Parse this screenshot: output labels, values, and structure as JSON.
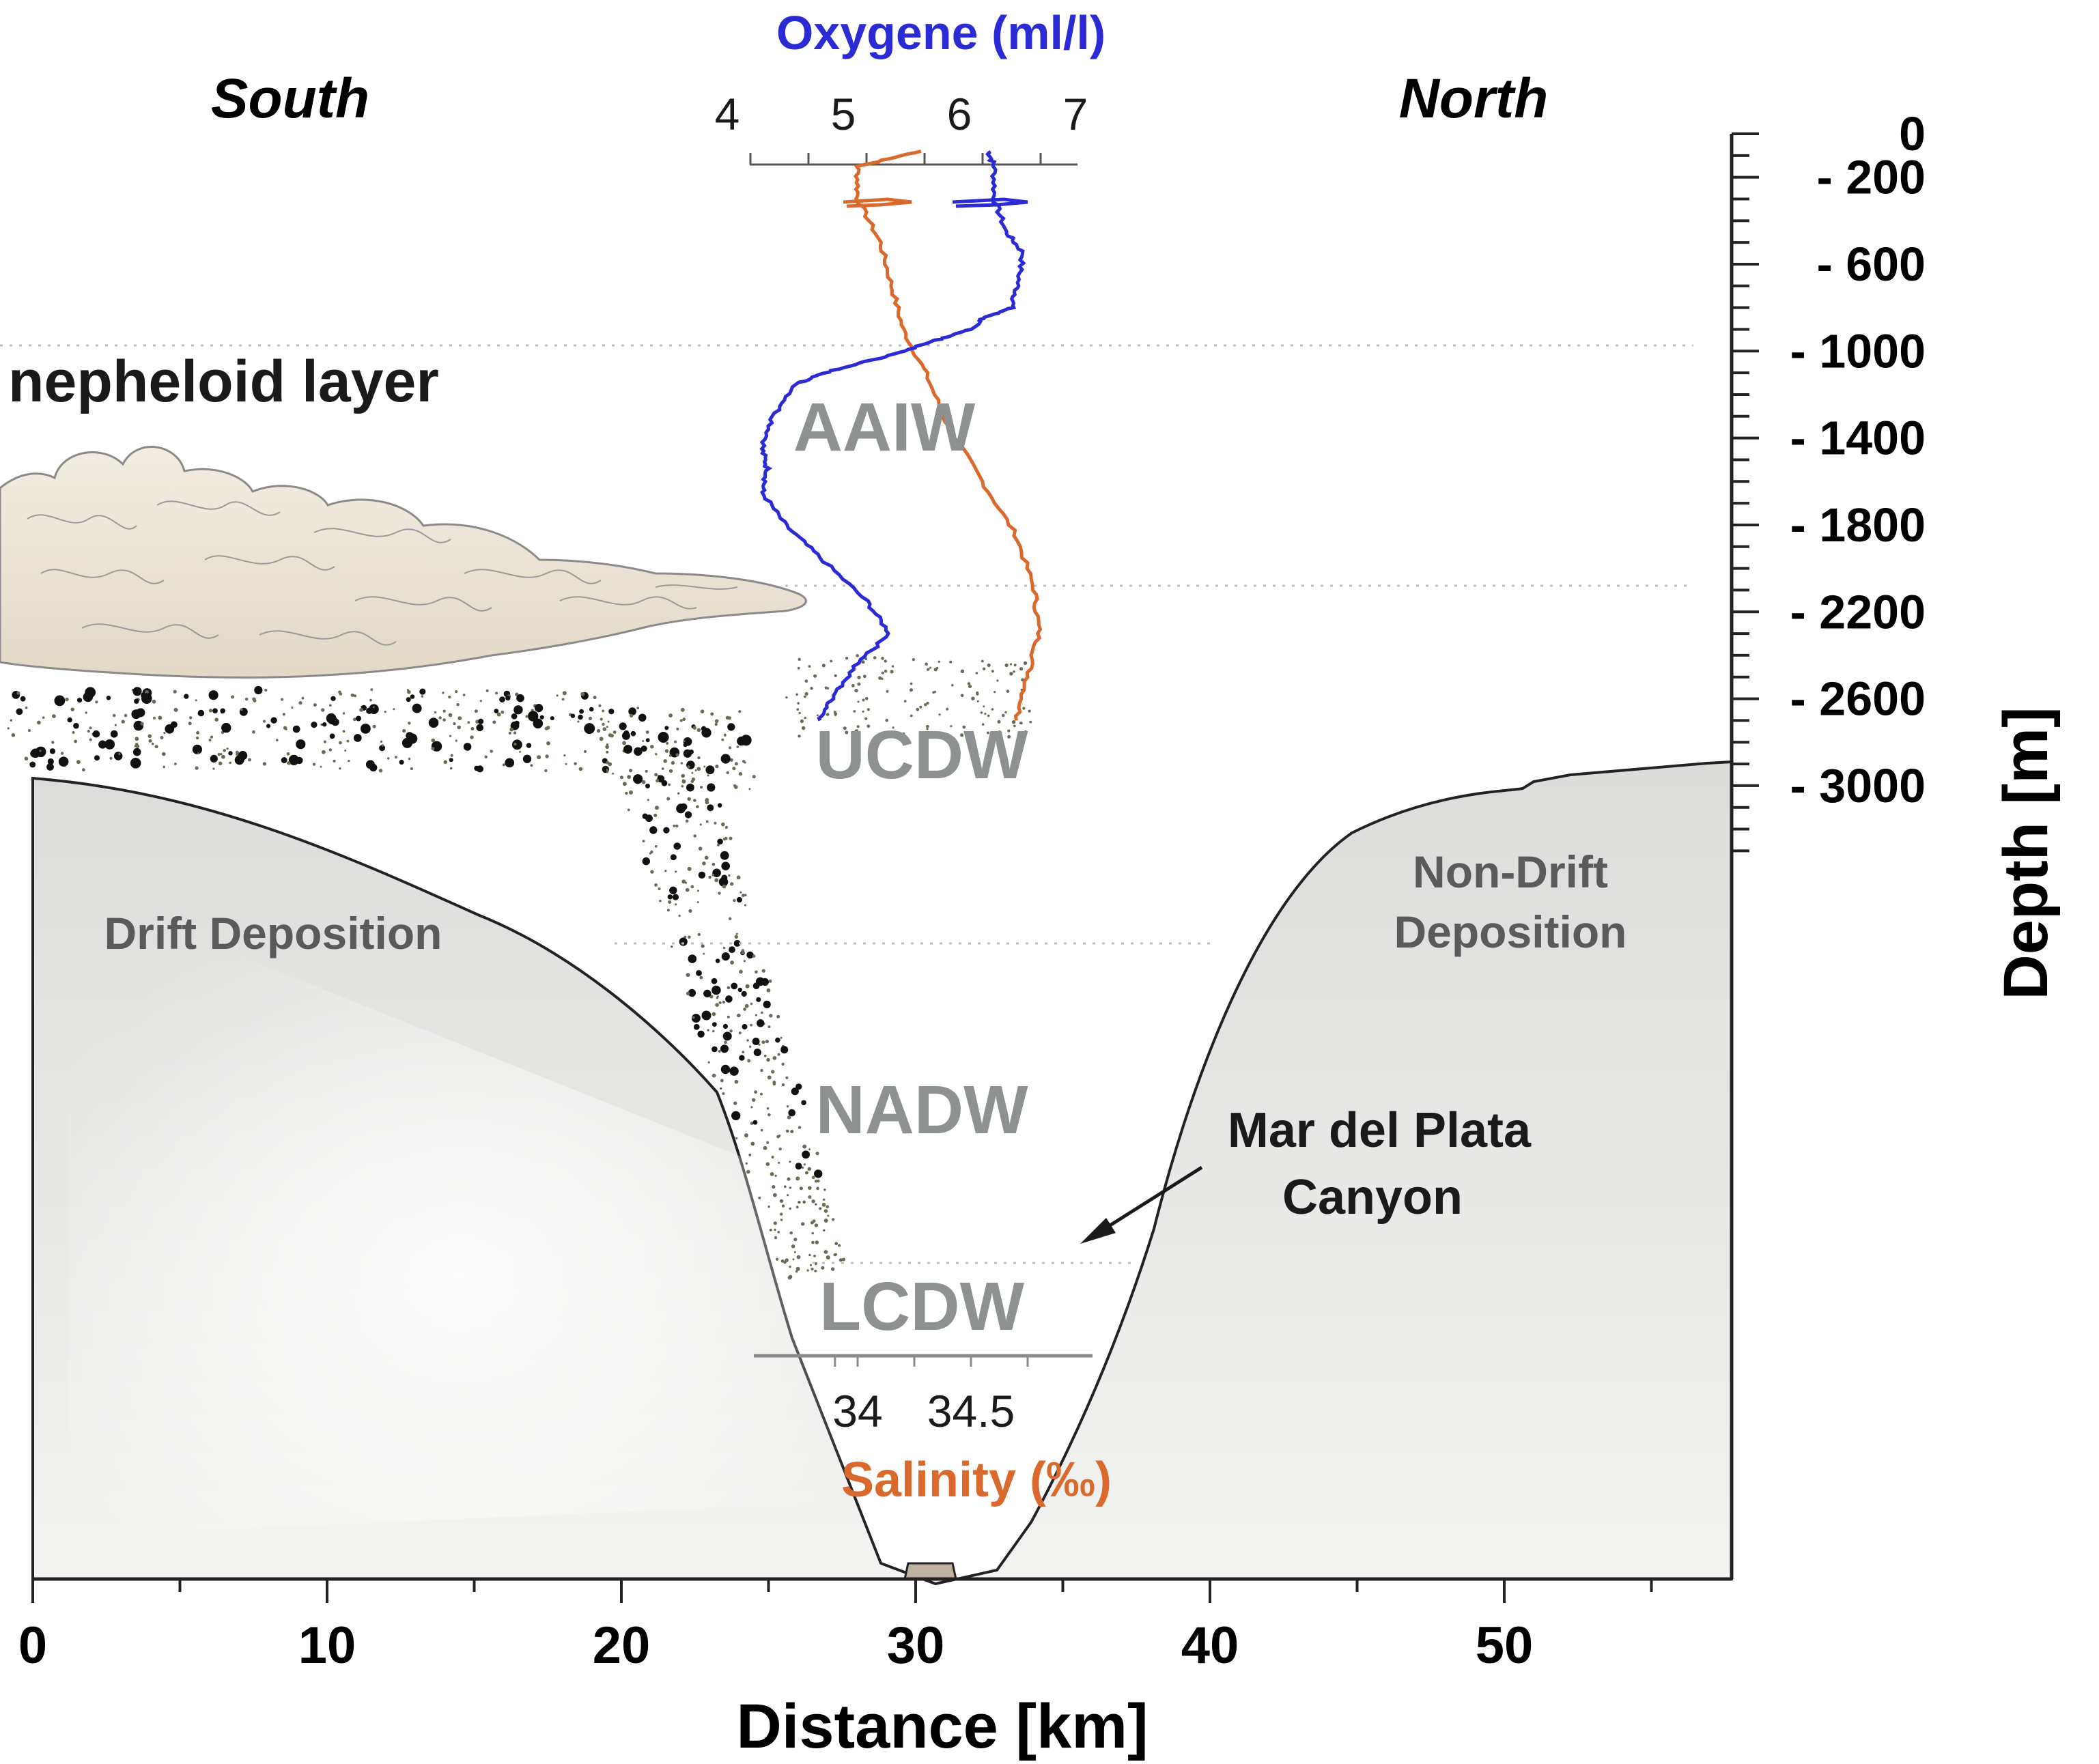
{
  "chart_data": {
    "type": "line",
    "title": "",
    "xlabel": "Distance [km]",
    "ylabel": "Depth [m]",
    "xlim": [
      0,
      58
    ],
    "ylim": [
      -3400,
      0
    ],
    "x_ticks": [
      "0",
      "10",
      "20",
      "30",
      "40",
      "50"
    ],
    "y_ticks": [
      "0",
      "- 200",
      "- 600",
      "- 1000",
      "- 1400",
      "- 1800",
      "- 2200",
      "- 2600",
      "- 3000"
    ],
    "top_axis": {
      "label": "Oxygene (ml/l)",
      "color": "#2b2bd6",
      "ticks": [
        "4",
        "5",
        "6",
        "7"
      ]
    },
    "bottom_inner_axis": {
      "label": "Salinity (‰)",
      "color": "#d9692c",
      "ticks": [
        "34",
        "34.5"
      ]
    },
    "series": [
      {
        "name": "Oxygene (ml/l)",
        "color": "#2b2bd6",
        "x_units": "ml/l",
        "points": [
          [
            6.25,
            -80
          ],
          [
            6.3,
            -150
          ],
          [
            6.3,
            -300
          ],
          [
            6.4,
            -450
          ],
          [
            6.55,
            -550
          ],
          [
            6.5,
            -700
          ],
          [
            6.45,
            -800
          ],
          [
            6.2,
            -850
          ],
          [
            6.1,
            -900
          ],
          [
            5.8,
            -950
          ],
          [
            5.4,
            -1020
          ],
          [
            4.9,
            -1090
          ],
          [
            4.6,
            -1150
          ],
          [
            4.4,
            -1300
          ],
          [
            4.3,
            -1450
          ],
          [
            4.35,
            -1550
          ],
          [
            4.3,
            -1650
          ],
          [
            4.5,
            -1800
          ],
          [
            4.8,
            -1950
          ],
          [
            5.2,
            -2150
          ],
          [
            5.4,
            -2300
          ],
          [
            5.1,
            -2450
          ],
          [
            4.9,
            -2600
          ],
          [
            4.8,
            -2700
          ]
        ]
      },
      {
        "name": "Salinity (‰)",
        "color": "#d9692c",
        "x_units": "‰",
        "points": [
          [
            34.28,
            -80
          ],
          [
            34.0,
            -150
          ],
          [
            34.0,
            -300
          ],
          [
            34.1,
            -500
          ],
          [
            34.15,
            -700
          ],
          [
            34.2,
            -900
          ],
          [
            34.3,
            -1100
          ],
          [
            34.4,
            -1350
          ],
          [
            34.55,
            -1600
          ],
          [
            34.7,
            -1850
          ],
          [
            34.78,
            -2100
          ],
          [
            34.8,
            -2300
          ],
          [
            34.75,
            -2500
          ],
          [
            34.7,
            -2700
          ]
        ]
      }
    ],
    "annotations": {
      "south": "South",
      "north": "North",
      "nepheloid": "nepheloid layer",
      "aaiw": "AAIW",
      "ucdw": "UCDW",
      "nadw": "NADW",
      "lcdw": "LCDW",
      "drift": "Drift Deposition",
      "nondrift_1": "Non-Drift",
      "nondrift_2": "Deposition",
      "canyon_1": "Mar del Plata",
      "canyon_2": "Canyon"
    }
  }
}
